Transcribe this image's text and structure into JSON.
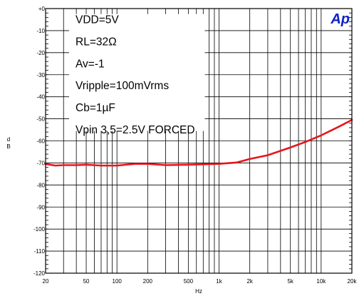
{
  "chart_data": {
    "type": "line",
    "title": "",
    "xlabel": "Hz",
    "ylabel": "dB",
    "x_scale": "log",
    "xlim": [
      20,
      20000
    ],
    "ylim": [
      -120,
      0
    ],
    "grid": true,
    "x_ticks": [
      20,
      50,
      100,
      200,
      500,
      1000,
      2000,
      5000,
      10000,
      20000
    ],
    "x_tick_labels": [
      "20",
      "50",
      "100",
      "200",
      "500",
      "1k",
      "2k",
      "5k",
      "10k",
      "20k"
    ],
    "y_ticks": [
      0,
      -10,
      -20,
      -30,
      -40,
      -50,
      -60,
      -70,
      -80,
      -90,
      -100,
      -110,
      -120
    ],
    "y_tick_labels": [
      "+0",
      "-10",
      "-20",
      "-30",
      "-40",
      "-50",
      "-60",
      "-70",
      "-80",
      "-90",
      "-100",
      "-110",
      "-120"
    ],
    "annotations": [
      "VDD=5V",
      "RL=32Ω",
      "Av=-1",
      "Vripple=100mVrms",
      "Cb=1µF",
      "Vpin 3,5=2.5V FORCED"
    ],
    "logo_text": "Ap",
    "colors": {
      "series": "#e8141c",
      "logo": "#1020c8",
      "grid": "#000000"
    },
    "series": [
      {
        "x": [
          20,
          25,
          30,
          40,
          50,
          70,
          100,
          150,
          200,
          300,
          500,
          700,
          1000,
          1500,
          2000,
          3000,
          5000,
          7000,
          10000,
          15000,
          20000
        ],
        "y": [
          -70.5,
          -71.2,
          -71,
          -71,
          -70.8,
          -71.2,
          -71.2,
          -70.4,
          -70.4,
          -71,
          -70.8,
          -70.6,
          -70.4,
          -69.8,
          -68.2,
          -66.5,
          -63,
          -60.5,
          -57.5,
          -53.5,
          -50.5
        ]
      }
    ]
  }
}
